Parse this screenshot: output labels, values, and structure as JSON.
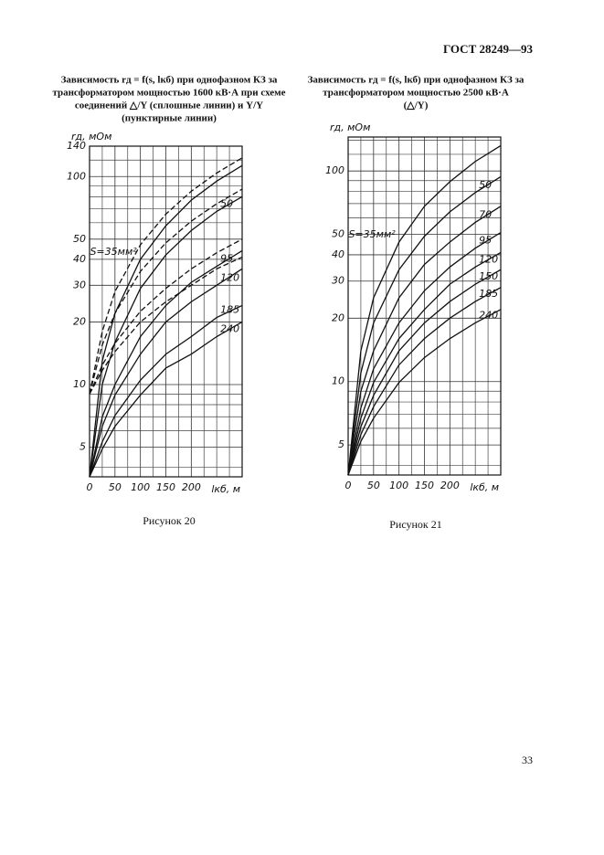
{
  "header": {
    "code": "ГОСТ 28249—93"
  },
  "page_number": "33",
  "chart_data": [
    {
      "type": "line",
      "title_lines": [
        "Зависимость rд = f(s, lкб) при однофазном КЗ за",
        "трансформатором мощностью 1600 кВ·А при схеме",
        "соединений △/Y   (сплошные линии) и Y/Y",
        "(пунктирные линии)"
      ],
      "caption": "Рисунок 20",
      "ylabel": "rд, мОм",
      "xlabel": "lкб, м",
      "log_y": true,
      "grid": true,
      "xlim": [
        0,
        300
      ],
      "ylim": [
        3.6,
        140
      ],
      "xticks": [
        0,
        50,
        100,
        150,
        200
      ],
      "yticks": [
        5,
        10,
        20,
        30,
        40,
        50,
        100,
        140
      ],
      "minor_xticks": [
        25,
        75,
        125,
        175,
        225,
        250,
        275
      ],
      "minor_yticks": [
        4,
        6,
        7,
        8,
        9,
        60,
        70,
        80,
        90,
        120
      ],
      "x": [
        0,
        25,
        50,
        100,
        150,
        200,
        250,
        300
      ],
      "series": [
        {
          "name": "S=35мм²",
          "color": "#111111",
          "dash": false,
          "values": [
            3.6,
            13,
            22,
            40,
            58,
            77,
            95,
            113
          ]
        },
        {
          "name": "50",
          "color": "#111111",
          "dash": false,
          "values": [
            3.6,
            10,
            16,
            29,
            42,
            55,
            68,
            80
          ]
        },
        {
          "name": "95",
          "color": "#111111",
          "dash": false,
          "values": [
            3.6,
            7,
            10,
            17,
            24,
            31,
            37,
            44
          ]
        },
        {
          "name": "120",
          "color": "#111111",
          "dash": false,
          "values": [
            3.6,
            6.3,
            8.9,
            14,
            20,
            25,
            30,
            36
          ]
        },
        {
          "name": "185",
          "color": "#111111",
          "dash": false,
          "values": [
            3.6,
            5.3,
            7.1,
            10.5,
            14,
            17,
            21,
            24
          ]
        },
        {
          "name": "240",
          "color": "#111111",
          "dash": false,
          "values": [
            3.6,
            4.9,
            6.3,
            8.9,
            12,
            14,
            17,
            20
          ]
        },
        {
          "color": "#111111",
          "dash": true,
          "values": [
            9,
            18,
            28,
            47,
            66,
            85,
            104,
            123
          ]
        },
        {
          "color": "#111111",
          "dash": true,
          "values": [
            9,
            15.5,
            22,
            35,
            48,
            61,
            74,
            87
          ]
        },
        {
          "color": "#111111",
          "dash": true,
          "values": [
            9,
            12.4,
            15.8,
            22.5,
            29,
            36,
            43,
            50
          ]
        },
        {
          "color": "#111111",
          "dash": true,
          "values": [
            9,
            11.7,
            14.4,
            20,
            25,
            30,
            36,
            41
          ]
        }
      ]
    },
    {
      "type": "line",
      "title_lines": [
        "Зависимость rд = f(s, lкб) при однофазном КЗ за",
        "трансформатором мощностью 2500 кВ·А",
        "(△/Y)"
      ],
      "caption": "Рисунок 21",
      "ylabel": "rд, мОм",
      "xlabel": "lкб, м",
      "log_y": true,
      "grid": true,
      "xlim": [
        0,
        300
      ],
      "ylim": [
        3.6,
        145
      ],
      "xticks": [
        0,
        50,
        100,
        150,
        200
      ],
      "yticks": [
        5,
        10,
        20,
        30,
        40,
        50,
        100
      ],
      "minor_xticks": [
        25,
        75,
        125,
        175,
        225,
        250,
        275
      ],
      "minor_yticks": [
        4,
        6,
        7,
        8,
        9,
        60,
        70,
        80,
        90,
        120,
        140
      ],
      "x": [
        0,
        25,
        50,
        100,
        150,
        200,
        250,
        300
      ],
      "series": [
        {
          "name": "S=35мм²",
          "color": "#111111",
          "dash": false,
          "values": [
            3.6,
            14,
            25,
            46,
            68,
            89,
            111,
            132
          ]
        },
        {
          "name": "50",
          "color": "#111111",
          "dash": false,
          "values": [
            3.6,
            11,
            19,
            34,
            49,
            64,
            79,
            94
          ]
        },
        {
          "name": "70",
          "color": "#111111",
          "dash": false,
          "values": [
            3.6,
            9,
            14,
            25,
            36,
            46,
            57,
            68
          ]
        },
        {
          "name": "95",
          "color": "#111111",
          "dash": false,
          "values": [
            3.6,
            7.5,
            11.5,
            19,
            27,
            35,
            43,
            51
          ]
        },
        {
          "name": "120",
          "color": "#111111",
          "dash": false,
          "values": [
            3.6,
            6.7,
            9.9,
            16,
            22,
            29,
            35,
            41
          ]
        },
        {
          "name": "150",
          "color": "#111111",
          "dash": false,
          "values": [
            3.6,
            6.1,
            8.6,
            14,
            19,
            24,
            29,
            34
          ]
        },
        {
          "name": "185",
          "color": "#111111",
          "dash": false,
          "values": [
            3.6,
            5.6,
            7.6,
            12,
            16,
            20,
            24,
            28
          ]
        },
        {
          "name": "240",
          "color": "#111111",
          "dash": false,
          "values": [
            3.6,
            5.2,
            6.7,
            9.9,
            13,
            16,
            19,
            22
          ]
        }
      ]
    }
  ]
}
